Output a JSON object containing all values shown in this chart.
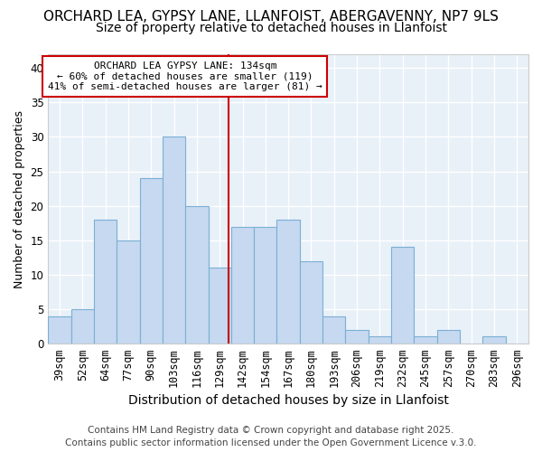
{
  "title1": "ORCHARD LEA, GYPSY LANE, LLANFOIST, ABERGAVENNY, NP7 9LS",
  "title2": "Size of property relative to detached houses in Llanfoist",
  "xlabel": "Distribution of detached houses by size in Llanfoist",
  "ylabel": "Number of detached properties",
  "bar_labels": [
    "39sqm",
    "52sqm",
    "64sqm",
    "77sqm",
    "90sqm",
    "103sqm",
    "116sqm",
    "129sqm",
    "142sqm",
    "154sqm",
    "167sqm",
    "180sqm",
    "193sqm",
    "206sqm",
    "219sqm",
    "232sqm",
    "245sqm",
    "257sqm",
    "270sqm",
    "283sqm",
    "296sqm"
  ],
  "bar_heights": [
    4,
    5,
    18,
    15,
    24,
    30,
    20,
    11,
    17,
    17,
    18,
    12,
    4,
    2,
    1,
    14,
    1,
    2,
    0,
    1,
    0
  ],
  "bar_color": "#c6d9f0",
  "bar_edgecolor": "#7bafd4",
  "vline_color": "#cc0000",
  "vline_x_idx": 7.38,
  "annotation_lines": [
    "ORCHARD LEA GYPSY LANE: 134sqm",
    "← 60% of detached houses are smaller (119)",
    "41% of semi-detached houses are larger (81) →"
  ],
  "annotation_box_edgecolor": "#cc0000",
  "ylim": [
    0,
    42
  ],
  "yticks": [
    0,
    5,
    10,
    15,
    20,
    25,
    30,
    35,
    40
  ],
  "footer": "Contains HM Land Registry data © Crown copyright and database right 2025.\nContains public sector information licensed under the Open Government Licence v.3.0.",
  "fig_bg_color": "#ffffff",
  "plot_bg_color": "#e8f0f8",
  "grid_color": "#ffffff",
  "title1_fontsize": 11,
  "title2_fontsize": 10,
  "xlabel_fontsize": 10,
  "ylabel_fontsize": 9,
  "tick_fontsize": 8.5,
  "ann_fontsize": 8,
  "footer_fontsize": 7.5
}
